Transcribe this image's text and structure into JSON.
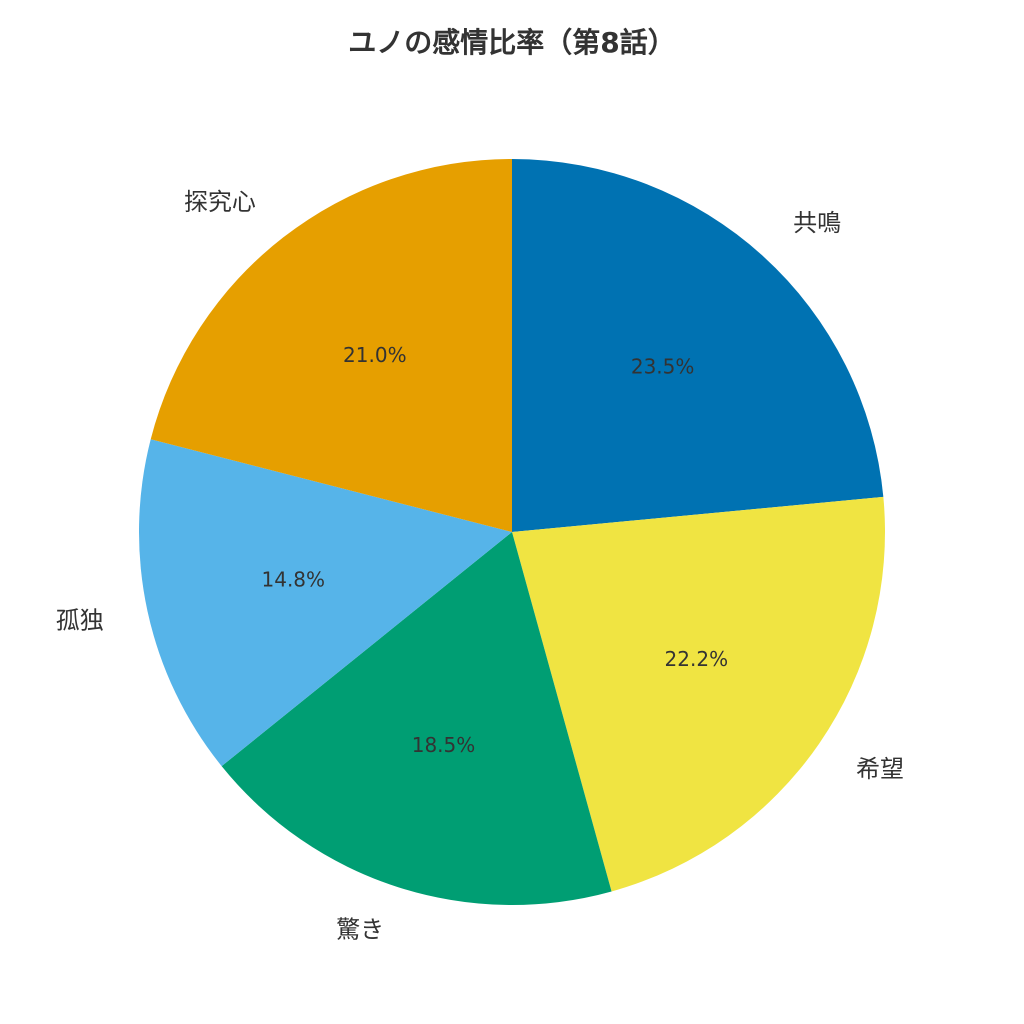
{
  "chart_data": {
    "type": "pie",
    "title": "ユノの感情比率（第8話）",
    "start_angle": "top, clockwise",
    "categories": [
      "共鳴",
      "希望",
      "驚き",
      "孤独",
      "探究心"
    ],
    "values": [
      23.5,
      22.2,
      18.5,
      14.8,
      21.0
    ],
    "value_labels": [
      "23.5%",
      "22.2%",
      "18.5%",
      "14.8%",
      "21.0%"
    ],
    "colors": [
      "#0072B2",
      "#F0E442",
      "#009E73",
      "#56B4E9",
      "#E69F00"
    ],
    "legend": "none"
  }
}
